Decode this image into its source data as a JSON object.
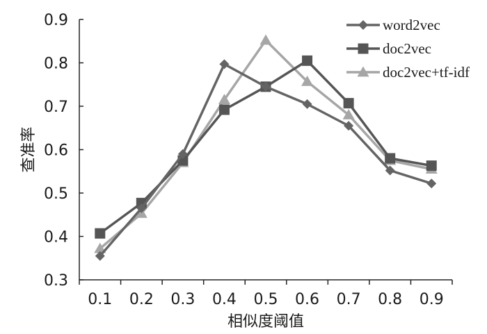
{
  "chart_data": {
    "type": "line",
    "xlabel": "相似度阈值",
    "ylabel": "查准率",
    "categories": [
      "0.1",
      "0.2",
      "0.3",
      "0.4",
      "0.5",
      "0.6",
      "0.7",
      "0.8",
      "0.9"
    ],
    "ylim": [
      0.3,
      0.9
    ],
    "yticks": [
      "0.3",
      "0.4",
      "0.5",
      "0.6",
      "0.7",
      "0.8",
      "0.9"
    ],
    "grid": false,
    "legend_position": "top-right",
    "series": [
      {
        "name": "word2vec",
        "marker": "diamond",
        "color": "#646464",
        "values": [
          0.355,
          0.465,
          0.59,
          0.797,
          0.745,
          0.705,
          0.655,
          0.552,
          0.522
        ]
      },
      {
        "name": "doc2vec",
        "marker": "square",
        "color": "#555555",
        "values": [
          0.407,
          0.477,
          0.575,
          0.692,
          0.745,
          0.805,
          0.707,
          0.58,
          0.563
        ]
      },
      {
        "name": "doc2vec+tf-idf",
        "marker": "triangle",
        "color": "#a6a6a6",
        "values": [
          0.372,
          0.453,
          0.57,
          0.715,
          0.852,
          0.757,
          0.68,
          0.575,
          0.555
        ]
      }
    ]
  }
}
